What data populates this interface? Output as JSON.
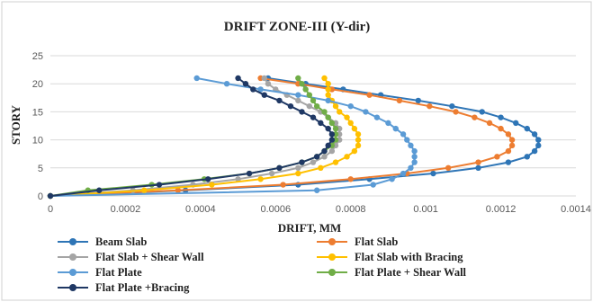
{
  "chart_data": {
    "type": "line",
    "title": "DRIFT ZONE-III (Y-dir)",
    "xlabel": "DRIFT, MM",
    "ylabel": "STORY",
    "xlim": [
      0,
      0.0014
    ],
    "ylim": [
      0,
      25
    ],
    "xticks": [
      "0",
      "0.0002",
      "0.0004",
      "0.0006",
      "0.0008",
      "0.001",
      "0.0012",
      "0.0014"
    ],
    "yticks": [
      "0",
      "5",
      "10",
      "15",
      "20",
      "25"
    ],
    "grid": "horizontal",
    "legend_position": "bottom",
    "stories": [
      0,
      1,
      2,
      3,
      4,
      5,
      6,
      7,
      8,
      9,
      10,
      11,
      12,
      13,
      14,
      15,
      16,
      17,
      18,
      19,
      20,
      21
    ],
    "series": [
      {
        "name": "Beam Slab",
        "color": "#2e75b6",
        "values": [
          0,
          0.00036,
          0.00066,
          0.00085,
          0.00102,
          0.00114,
          0.00122,
          0.00127,
          0.00129,
          0.0013,
          0.0013,
          0.00129,
          0.00127,
          0.00124,
          0.0012,
          0.00115,
          0.00107,
          0.00098,
          0.00088,
          0.00078,
          0.00068,
          0.00058
        ]
      },
      {
        "name": "Flat Slab",
        "color": "#ed7d31",
        "values": [
          0,
          0.00034,
          0.00062,
          0.0008,
          0.00095,
          0.00106,
          0.00114,
          0.00119,
          0.00122,
          0.00123,
          0.00123,
          0.00122,
          0.0012,
          0.00117,
          0.00113,
          0.00108,
          0.00101,
          0.00093,
          0.00085,
          0.00075,
          0.00066,
          0.00056
        ]
      },
      {
        "name": "Flat Slab + Shear Wall",
        "color": "#a5a5a5",
        "values": [
          0,
          0.00022,
          0.00038,
          0.0005,
          0.00059,
          0.00066,
          0.0007,
          0.00073,
          0.00075,
          0.00076,
          0.00077,
          0.00077,
          0.00077,
          0.00076,
          0.00074,
          0.00072,
          0.00069,
          0.00066,
          0.00063,
          0.0006,
          0.00058,
          0.00057
        ]
      },
      {
        "name": "Flat Slab with Bracing",
        "color": "#ffc000",
        "values": [
          0,
          0.00025,
          0.00043,
          0.00056,
          0.00066,
          0.00072,
          0.00076,
          0.00079,
          0.00081,
          0.00082,
          0.00082,
          0.00082,
          0.00081,
          0.0008,
          0.00079,
          0.00077,
          0.00076,
          0.00075,
          0.00074,
          0.00074,
          0.00074,
          0.00073
        ]
      },
      {
        "name": "Flat Plate",
        "color": "#5b9bd5",
        "values": [
          0,
          0.00071,
          0.00086,
          0.00091,
          0.00094,
          0.00096,
          0.00097,
          0.00097,
          0.00097,
          0.00096,
          0.00095,
          0.00094,
          0.00092,
          0.0009,
          0.00087,
          0.00084,
          0.0008,
          0.00074,
          0.00066,
          0.00056,
          0.00047,
          0.00039
        ]
      },
      {
        "name": "Flat Plate + Shear Wall",
        "color": "#70ad47",
        "values": [
          0,
          0.0001,
          0.00027,
          0.00041,
          0.00053,
          0.00061,
          0.00067,
          0.00071,
          0.00073,
          0.00075,
          0.00076,
          0.00076,
          0.00076,
          0.00075,
          0.00074,
          0.00073,
          0.00071,
          0.0007,
          0.00069,
          0.00068,
          0.00067,
          0.00066
        ]
      },
      {
        "name": "Flat Plate +Bracing",
        "color": "#1f3864",
        "values": [
          0,
          0.00013,
          0.00029,
          0.00042,
          0.00053,
          0.00061,
          0.00067,
          0.00071,
          0.00073,
          0.00074,
          0.00075,
          0.00075,
          0.00074,
          0.00072,
          0.0007,
          0.00067,
          0.00064,
          0.00061,
          0.00057,
          0.00054,
          0.00052,
          0.0005
        ]
      }
    ]
  }
}
